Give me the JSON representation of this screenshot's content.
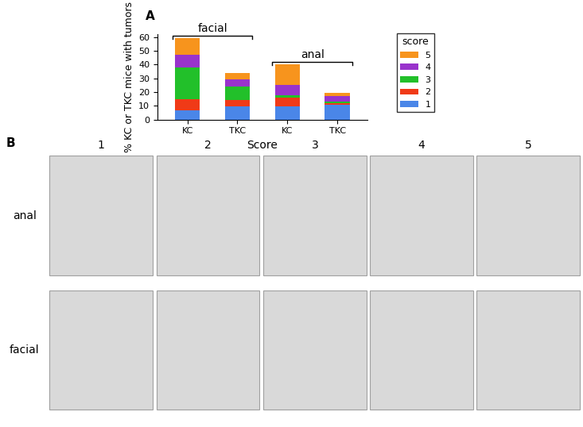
{
  "chart_data": {
    "type": "bar",
    "stacked": true,
    "panel_label": "A",
    "x_label": "Score",
    "y_label": "% KC or TKC mice with tumors",
    "categories": [
      "KC",
      "TKC",
      "KC",
      "TKC"
    ],
    "groups": [
      {
        "label": "facial",
        "start": 0,
        "end": 1
      },
      {
        "label": "anal",
        "start": 2,
        "end": 3
      }
    ],
    "series": [
      {
        "name": "1",
        "color": "#4a86e8",
        "values": [
          6.5,
          9.5,
          9.5,
          10.5
        ]
      },
      {
        "name": "2",
        "color": "#f03a17",
        "values": [
          8.5,
          4.5,
          6.5,
          1.5
        ]
      },
      {
        "name": "3",
        "color": "#22c02a",
        "values": [
          23,
          10,
          1.5,
          1
        ]
      },
      {
        "name": "4",
        "color": "#9933cc",
        "values": [
          9,
          5,
          7.5,
          4
        ]
      },
      {
        "name": "5",
        "color": "#f7941d",
        "values": [
          12,
          5,
          15,
          2.5
        ]
      }
    ],
    "legend": "right",
    "legend_title": "score",
    "ylim": [
      0,
      62
    ],
    "yticks": [
      0,
      10,
      20,
      30,
      40,
      50,
      60
    ],
    "grid": false
  },
  "photo_panel": {
    "panel_label": "B",
    "columns": [
      "1",
      "2",
      "3",
      "4",
      "5"
    ],
    "rows": [
      "anal",
      "facial"
    ]
  }
}
